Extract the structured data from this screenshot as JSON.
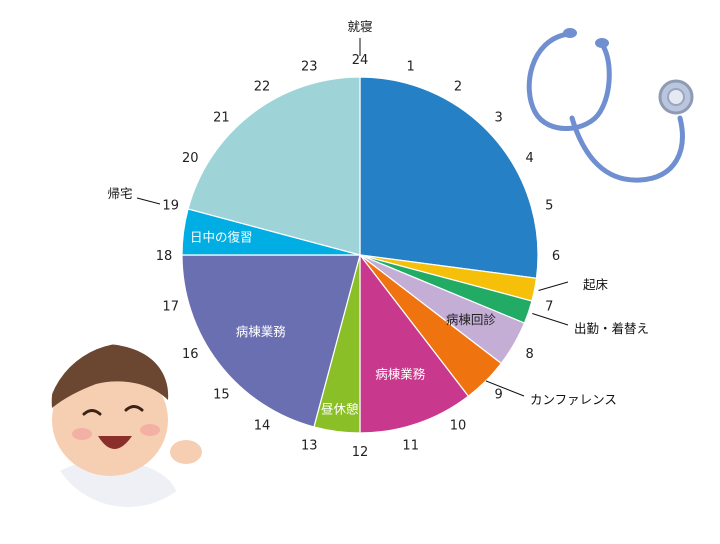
{
  "chart_data": {
    "type": "pie",
    "subtype": "24-hour clock schedule",
    "unit": "hours",
    "total": 24,
    "hour_labels": [
      "24",
      "1",
      "2",
      "3",
      "4",
      "5",
      "6",
      "7",
      "8",
      "9",
      "10",
      "11",
      "12",
      "13",
      "14",
      "15",
      "16",
      "17",
      "18",
      "19",
      "20",
      "21",
      "22",
      "23"
    ],
    "segments": [
      {
        "key": "sleep",
        "start": 0,
        "end": 6.5,
        "color": "#2580c6",
        "label": "",
        "label_mode": "none"
      },
      {
        "key": "wake",
        "start": 6.5,
        "end": 7,
        "color": "#f5bf0a",
        "label": "起床",
        "label_mode": "callout"
      },
      {
        "key": "commute",
        "start": 7,
        "end": 7.5,
        "color": "#22ab64",
        "label": "出勤・着替え",
        "label_mode": "callout"
      },
      {
        "key": "rounds",
        "start": 7.5,
        "end": 8.5,
        "color": "#c4aed6",
        "label": "病棟回診",
        "label_mode": "inside-dark"
      },
      {
        "key": "conference",
        "start": 8.5,
        "end": 9.5,
        "color": "#ef7410",
        "label": "カンファレンス",
        "label_mode": "callout"
      },
      {
        "key": "ward-am",
        "start": 9.5,
        "end": 12,
        "color": "#c8398e",
        "label": "病棟業務",
        "label_mode": "inside"
      },
      {
        "key": "lunch",
        "start": 12,
        "end": 13,
        "color": "#8bbf27",
        "label": "昼休憩",
        "label_mode": "inside"
      },
      {
        "key": "ward-pm",
        "start": 13,
        "end": 18,
        "color": "#6a6fb1",
        "label": "病棟業務",
        "label_mode": "inside"
      },
      {
        "key": "review",
        "start": 18,
        "end": 19,
        "color": "#00aee4",
        "label": "日中の復習",
        "label_mode": "inside"
      },
      {
        "key": "free",
        "start": 19,
        "end": 24,
        "color": "#9ed4d8",
        "label": "",
        "label_mode": "none"
      }
    ],
    "markers": [
      {
        "key": "go-home",
        "hour": 19,
        "label": "帰宅"
      },
      {
        "key": "bedtime",
        "hour": 24,
        "label": "就寝"
      }
    ]
  },
  "decorations": {
    "stethoscope": {
      "icon": "stethoscope-icon",
      "color": "#6f8fd0"
    },
    "baby": {
      "icon": "smiling-baby-illustration"
    }
  }
}
